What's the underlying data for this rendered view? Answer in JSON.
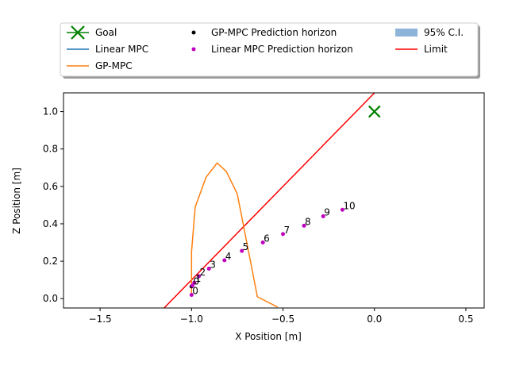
{
  "chart_data": {
    "type": "line",
    "xlabel": "X Position [m]",
    "ylabel": "Z Position [m]",
    "xlim": [
      -1.7,
      0.6
    ],
    "ylim": [
      -0.05,
      1.1
    ],
    "xticks": [
      -1.5,
      -1.0,
      -0.5,
      0.0,
      0.5
    ],
    "xtick_labels": [
      "−1.5",
      "−1.0",
      "−0.5",
      "0.0",
      "0.5"
    ],
    "yticks": [
      0.0,
      0.2,
      0.4,
      0.6,
      0.8,
      1.0
    ],
    "ytick_labels": [
      "0.0",
      "0.2",
      "0.4",
      "0.6",
      "0.8",
      "1.0"
    ],
    "grid": false,
    "legend_placement": "top, outside plot, 3 columns",
    "legend": [
      {
        "label": "Goal",
        "kind": "x-marker",
        "color": "#008000"
      },
      {
        "label": "Linear MPC",
        "kind": "line",
        "color": "#1f77b4"
      },
      {
        "label": "GP-MPC",
        "kind": "line",
        "color": "#ff7f0e"
      },
      {
        "label": "GP-MPC Prediction horizon",
        "kind": "dot",
        "color": "#000000"
      },
      {
        "label": "Linear MPC Prediction horizon",
        "kind": "dot",
        "color": "#bf00bf"
      },
      {
        "label": "95% C.I.",
        "kind": "patch",
        "color": "#8fb4d9"
      },
      {
        "label": "Limit",
        "kind": "line",
        "color": "#ff0000"
      }
    ],
    "goal": {
      "x": 0.0,
      "y": 1.0
    },
    "limit_line": [
      {
        "x": -1.15,
        "y": -0.05
      },
      {
        "x": 0.0,
        "y": 1.1
      }
    ],
    "gp_mpc_trajectory": [
      {
        "x": -1.0,
        "y": 0.03
      },
      {
        "x": -1.0,
        "y": 0.25
      },
      {
        "x": -0.98,
        "y": 0.49
      },
      {
        "x": -0.92,
        "y": 0.65
      },
      {
        "x": -0.86,
        "y": 0.725
      },
      {
        "x": -0.81,
        "y": 0.68
      },
      {
        "x": -0.75,
        "y": 0.56
      },
      {
        "x": -0.7,
        "y": 0.31
      },
      {
        "x": -0.64,
        "y": 0.01
      },
      {
        "x": -0.53,
        "y": -0.045
      }
    ],
    "gp_mpc_prediction_horizon": [
      {
        "x": -1.0,
        "y": 0.065
      }
    ],
    "linear_mpc_prediction_horizon": [
      {
        "x": -1.0,
        "y": 0.02,
        "label": "0"
      },
      {
        "x": -0.995,
        "y": 0.07,
        "label": "0"
      },
      {
        "x": -0.985,
        "y": 0.085,
        "label": "1"
      },
      {
        "x": -0.96,
        "y": 0.12,
        "label": "2"
      },
      {
        "x": -0.905,
        "y": 0.16,
        "label": "3"
      },
      {
        "x": -0.82,
        "y": 0.205,
        "label": "4"
      },
      {
        "x": -0.725,
        "y": 0.255,
        "label": "5"
      },
      {
        "x": -0.61,
        "y": 0.3,
        "label": "6"
      },
      {
        "x": -0.5,
        "y": 0.345,
        "label": "7"
      },
      {
        "x": -0.385,
        "y": 0.39,
        "label": "8"
      },
      {
        "x": -0.28,
        "y": 0.44,
        "label": "9"
      },
      {
        "x": -0.175,
        "y": 0.475,
        "label": "10"
      }
    ]
  }
}
